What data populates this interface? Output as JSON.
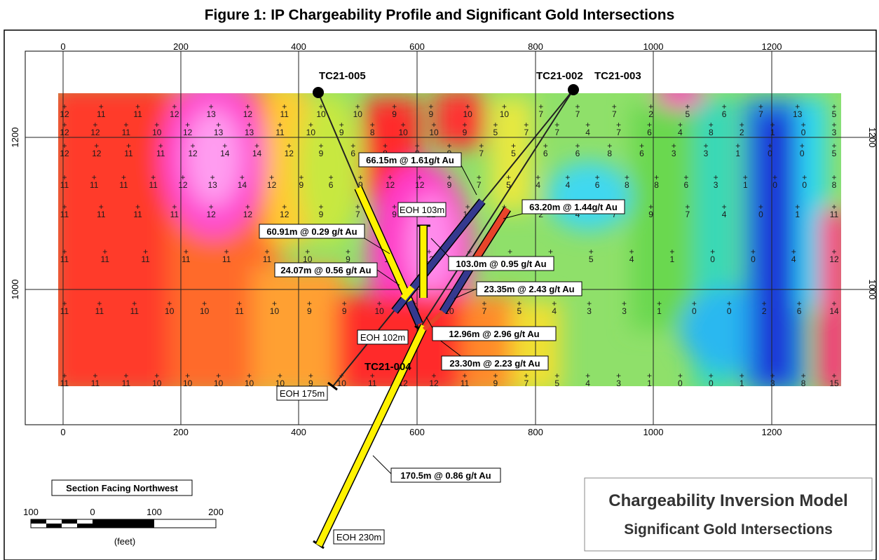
{
  "title": "Figure 1: IP Chargeability Profile and Significant Gold Intersections",
  "axis": {
    "x_ticks": [
      "0",
      "200",
      "400",
      "600",
      "800",
      "1000",
      "1200"
    ],
    "y_ticks": [
      "1200",
      "1000"
    ]
  },
  "drillholes": [
    {
      "name": "TC21-005"
    },
    {
      "name": "TC21-002"
    },
    {
      "name": "TC21-003"
    },
    {
      "name": "TC21-004"
    }
  ],
  "eoh_labels": [
    "EOH 103m",
    "EOH 102m",
    "EOH 175m",
    "EOH 230m"
  ],
  "intersections": [
    "66.15m @ 1.61g/t Au",
    "63.20m @ 1.44g/t Au",
    "60.91m @ 0.29 g/t Au",
    "24.07m @ 0.56 g/t Au",
    "103.0m @ 0.95 g/t Au",
    "23.35m @ 2.43 g/t Au",
    "12.96m @ 2.96 g/t Au",
    "23.30m @ 2.23 g/t Au",
    "170.5m @ 0.86 g/t Au"
  ],
  "section_label": "Section Facing Northwest",
  "scale_bar": {
    "ticks": [
      "100",
      "0",
      "100",
      "200"
    ],
    "unit": "(feet)"
  },
  "legend_box": {
    "line1": "Chargeability Inversion Model",
    "line2": "Significant Gold Intersections"
  },
  "ip_values": {
    "row1": [
      "12",
      "11",
      "11",
      "12",
      "13",
      "12",
      "11",
      "10",
      "10",
      "9",
      "9",
      "10",
      "10",
      "7",
      "7",
      "7",
      "2",
      "5",
      "6",
      "7",
      "13",
      "5"
    ],
    "row2": [
      "12",
      "12",
      "11",
      "10",
      "12",
      "13",
      "13",
      "11",
      "10",
      "9",
      "8",
      "10",
      "10",
      "9",
      "5",
      "7",
      "7",
      "4",
      "7",
      "6",
      "4",
      "8",
      "2",
      "1",
      "0",
      "3"
    ],
    "row3": [
      "12",
      "12",
      "11",
      "11",
      "12",
      "14",
      "14",
      "12",
      "9",
      "6",
      "8",
      "8",
      "9",
      "7",
      "5",
      "6",
      "6",
      "8",
      "6",
      "3",
      "3",
      "1",
      "0",
      "0",
      "5"
    ],
    "row4": [
      "11",
      "11",
      "11",
      "11",
      "12",
      "13",
      "14",
      "12",
      "9",
      "6",
      "9",
      "12",
      "12",
      "9",
      "7",
      "5",
      "4",
      "4",
      "6",
      "8",
      "8",
      "6",
      "3",
      "1",
      "0",
      "0",
      "8"
    ],
    "row5": [
      "11",
      "11",
      "11",
      "11",
      "12",
      "12",
      "12",
      "9",
      "7",
      "9",
      "12",
      "10",
      "4",
      "2",
      "4",
      "7",
      "9",
      "7",
      "4",
      "0",
      "1",
      "11"
    ],
    "row6": [
      "11",
      "11",
      "11",
      "11",
      "11",
      "11",
      "10",
      "9",
      "11",
      "12",
      "4",
      "4",
      "5",
      "5",
      "4",
      "1",
      "0",
      "0",
      "4",
      "12"
    ],
    "row7": [
      "11",
      "11",
      "11",
      "10",
      "10",
      "11",
      "10",
      "9",
      "9",
      "10",
      "12",
      "10",
      "7",
      "5",
      "4",
      "3",
      "3",
      "1",
      "0",
      "0",
      "2",
      "6",
      "14"
    ],
    "row8": [
      "11",
      "11",
      "11",
      "10",
      "10",
      "10",
      "10",
      "10",
      "9",
      "10",
      "11",
      "12",
      "12",
      "11",
      "9",
      "7",
      "5",
      "4",
      "3",
      "1",
      "0",
      "0",
      "1",
      "3",
      "8",
      "15"
    ]
  },
  "colors": {
    "ip_high": "#ff1a1a",
    "ip_low": "#1b2bd6",
    "hole_yellow": "#fff200",
    "hole_blue": "#35398f",
    "hole_red": "#e8442a"
  }
}
